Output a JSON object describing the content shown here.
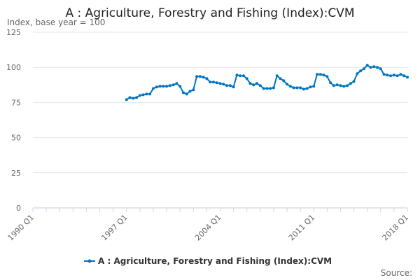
{
  "chart_data": {
    "type": "line",
    "title": "A : Agriculture, Forestry and Fishing (Index):CVM",
    "ylabel": "Index, base year = 100",
    "xlabel": "",
    "ylim": [
      0,
      125
    ],
    "yticks": [
      "0",
      "25",
      "50",
      "75",
      "100",
      "125"
    ],
    "xlim": [
      "1990 Q1",
      "2018 Q1"
    ],
    "xticks": [
      "1990 Q1",
      "1997 Q1",
      "2004 Q1",
      "2011 Q1",
      "2018 Q1"
    ],
    "grid": true,
    "legend_position": "bottom",
    "source_label": "Source:",
    "series": [
      {
        "name": "A : Agriculture, Forestry and Fishing (Index):CVM",
        "color": "#0075c2",
        "start": "1997 Q1",
        "frequency": "quarterly",
        "values": [
          77,
          78.5,
          78,
          78.5,
          80,
          80.5,
          81,
          81,
          85,
          86,
          86.5,
          86.5,
          86.5,
          87,
          87.5,
          88.5,
          86.5,
          82,
          81,
          83,
          84,
          93.5,
          93.5,
          93,
          92,
          89.5,
          89.5,
          89,
          88.5,
          88,
          87,
          87,
          86,
          94.5,
          94,
          94,
          92,
          88.5,
          87.5,
          88.5,
          87,
          85,
          85,
          85,
          85.5,
          94,
          92,
          90.5,
          88,
          86.5,
          85.5,
          85.5,
          85.5,
          84.5,
          85,
          86,
          86.5,
          95,
          95,
          94.5,
          93.5,
          89,
          87,
          87.5,
          87,
          86.5,
          87,
          88.5,
          90,
          95.5,
          97.5,
          99,
          101.5,
          100,
          100.5,
          100,
          99,
          95,
          94.5,
          94,
          94.5,
          94,
          95,
          94,
          93
        ]
      }
    ]
  }
}
